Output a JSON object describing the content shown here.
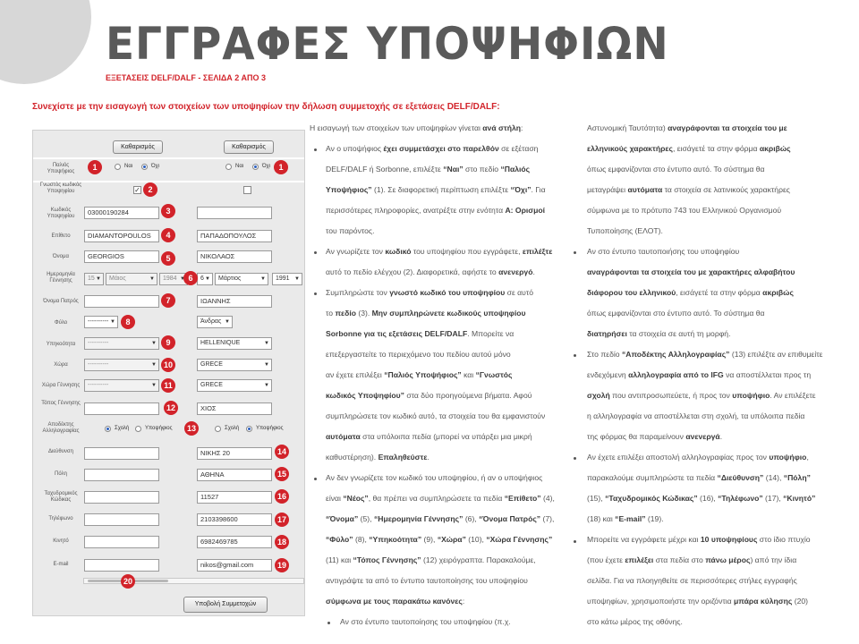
{
  "badge": "Δ2",
  "title": "ΕΓΓΡΑΦΕΣ ΥΠΟΨΗΦΙΩΝ",
  "subtitle": "ΕΞΕΤΑΣΕΙΣ DELF/DALF - ΣΕΛΙΔΑ 2 ΑΠΟ 3",
  "intro": "Συνεχίστε με την εισαγωγή των στοιχείων των υποψηφίων την δήλωση συμμετοχής σε εξετάσεις DELF/DALF:",
  "form": {
    "clear_label": "Καθαρισμός",
    "labels": {
      "old": "Παλιός Υποψήφιος",
      "known": "Γνωστός κωδικός Υποψηφίου",
      "code": "Κωδικός Υποψηφίου",
      "surname": "Επίθετο",
      "name": "Όνομα",
      "dob": "Ημερομηνία Γέννησης",
      "father": "Όνομα Πατρός",
      "gender": "Φύλο",
      "nationality": "Υπηκοότητα",
      "country": "Χώρα",
      "birth_country": "Χώρα Γέννησης",
      "birth_place": "Τόπος Γέννησης",
      "mail_recipient": "Αποδέκτης Αλληλογραφίας",
      "address": "Διεύθυνση",
      "city": "Πόλη",
      "postcode": "Ταχυδρομικός Κώδικας",
      "phone": "Τηλέφωνο",
      "mobile": "Κινητό",
      "email": "E-mail"
    },
    "yes": "Ναι",
    "no": "Όχι",
    "school": "Σχολή",
    "candidate": "Υποψήφιος",
    "left": {
      "code": "03000190284",
      "surname": "DIAMANTOPOULOS",
      "name": "GEORGIOS",
      "dob_day": "15",
      "dob_month": "Μάιος",
      "dob_year": "1984",
      "gender": "----------",
      "nationality": "----------",
      "country": "----------",
      "birth_country": "----------"
    },
    "right": {
      "surname": "ΠΑΠΑΔΟΠΟΥΛΟΣ",
      "name": "ΝΙΚΟΛΑΟΣ",
      "dob_day": "6",
      "dob_month": "Μάρτιος",
      "dob_year": "1991",
      "father": "ΙΩΑΝΝΗΣ",
      "gender": "Άνδρας",
      "nationality": "HELLENIQUE",
      "country": "GRECE",
      "birth_country": "GRECE",
      "birth_place": "ΧΙΟΣ",
      "address": "ΝΙΚΗΣ 20",
      "city": "ΑΘΗΝΑ",
      "postcode": "11527",
      "phone": "2103398600",
      "mobile": "6982469785",
      "email": "nikos@gmail.com"
    },
    "submit_label": "Υποβολή Συμμετοχών",
    "numbers": [
      "1",
      "1",
      "2",
      "3",
      "4",
      "5",
      "6",
      "7",
      "8",
      "9",
      "10",
      "11",
      "12",
      "13",
      "14",
      "15",
      "16",
      "17",
      "18",
      "19",
      "20"
    ]
  },
  "col1": {
    "r1": [
      "Η εισαγωγή των στοιχείων των υποψηφίων γίνεται ",
      "ανά στήλη",
      ":"
    ],
    "r2": [
      "Αν ο υποψήφιος ",
      "έχει συμμετάσχει στο παρελθόν",
      " σε εξέταση"
    ],
    "r3": [
      "DELF/DALF ή Sorbonne, επιλέξτε ",
      "“Ναι”",
      " στο πεδίο ",
      "“Παλιός"
    ],
    "r4": [
      "Υποψήφιος”",
      " (1). Σε διαφορετική περίπτωση επιλέξτε ",
      "“Όχι”",
      ". Για"
    ],
    "r5": [
      "περισσότερες πληροφορίες, ανατρέξτε στην ενότητα ",
      "Α: Ορισμοί"
    ],
    "r6": [
      "του παρόντος."
    ],
    "r7": [
      "Αν γνωρίζετε τον ",
      "κωδικό",
      " του υποψηφίου που εγγράφετε, ",
      "επιλέξτε"
    ],
    "r8": [
      "αυτό το πεδίο ελέγχου (2). Διαφορετικά, αφήστε το ",
      "ανενεργό",
      "."
    ],
    "r9": [
      "Συμπληρώστε τον ",
      "γνωστό κωδικό του υποψηφίου",
      " σε αυτό"
    ],
    "r10": [
      "το ",
      "πεδίο",
      " (3). ",
      "Μην συμπληρώνετε κωδικούς υποψηφίου"
    ],
    "r11": [
      "Sorbonne για τις εξετάσεις DELF/DALF",
      ". Μπορείτε να"
    ],
    "r12": [
      "επεξεργαστείτε το περιεχόμενο του πεδίου αυτού μόνο"
    ],
    "r13": [
      "αν έχετε επιλέξει ",
      "“Παλιός Υποψήφιος”",
      " και ",
      "“Γνωστός"
    ],
    "r14": [
      "κωδικός Υποψηφίου”",
      " στα δύο προηγούμενα βήματα. Αφού"
    ],
    "r15": [
      "συμπληρώσετε τον κωδικό αυτό, τα στοιχεία του θα εμφανιστούν"
    ],
    "r16": [
      "αυτόματα",
      " στα υπόλοιπα πεδία (μπορεί να υπάρξει μια μικρή"
    ],
    "r17": [
      "καθυστέρηση). ",
      "Επαληθεύστε",
      "."
    ],
    "r18": [
      "Αν δεν γνωρίζετε τον κωδικό του υποψηφίου, ή αν ο υποψήφιος"
    ],
    "r19": [
      "είναι ",
      "“Νέος”",
      ", θα πρέπει να συμπληρώσετε τα πεδία ",
      "“Επίθετο”",
      " (4),"
    ],
    "r20": [
      "“Όνομα”",
      " (5), ",
      "“Ημερομηνία Γέννησης”",
      " (6), ",
      "“Όνομα Πατρός”",
      " (7),"
    ],
    "r21": [
      "“Φύλο”",
      " (8), ",
      "“Υπηκοότητα”",
      " (9), ",
      "“Χώρα”",
      " (10), ",
      "“Χώρα Γέννησης”"
    ],
    "r22": [
      "(11) και ",
      "“Τόπος Γέννησης”",
      " (12) χειρόγραπτα. Παρακαλούμε,"
    ],
    "r23": [
      "αντιγράψτε τα από το έντυπο ταυτοποίησης του υποψηφίου"
    ],
    "r24": [
      "σύμφωνα με τους παρακάτω κανόνες",
      ":"
    ],
    "r25": [
      "Αν στο έντυπο ταυτοποίησης του υποψηφίου (π.χ."
    ]
  },
  "col2": {
    "r1": [
      "Αστυνομική Ταυτότητα) ",
      "αναγράφονται τα στοιχεία του με"
    ],
    "r2": [
      "ελληνικούς χαρακτήρες",
      ", εισάγετέ τα στην φόρμα ",
      "ακριβώς"
    ],
    "r3": [
      "όπως εμφανίζονται στο έντυπο αυτό. Το σύστημα θα"
    ],
    "r4": [
      "μεταγράψει ",
      "αυτόματα",
      " τα στοιχεία σε λατινικούς χαρακτήρες"
    ],
    "r5": [
      "σύμφωνα με το πρότυπο 743 του Ελληνικού Οργανισμού"
    ],
    "r6": [
      "Τυποποίησης (ΕΛΟΤ)."
    ],
    "r7": [
      "Αν στο έντυπο ταυτοποιήσης του υποψηφίου"
    ],
    "r8": [
      "αναγράφονται τα στοιχεία του με χαρακτήρες αλφαβήτου"
    ],
    "r9": [
      "διάφορου του ελληνικού",
      ", εισάγετέ τα στην φόρμα ",
      "ακριβώς"
    ],
    "r10": [
      "όπως εμφανίζονται στο έντυπο αυτό. Το σύστημα θα"
    ],
    "r11": [
      "διατηρήσει",
      " τα στοιχεία σε αυτή τη μορφή."
    ],
    "r12": [
      "Στο πεδίο ",
      "“Αποδέκτης Αλληλογραφίας”",
      " (13) επιλέξτε αν επιθυμείτε"
    ],
    "r13": [
      "ενδεχόμενη ",
      "αλληλογραφία από το IFG",
      " να αποστέλλεται προς τη"
    ],
    "r14": [
      "σχολή",
      " που αντιπροσωπεύετε, ή προς τον ",
      "υποψήφιο",
      ". Αν επιλέξετε"
    ],
    "r15": [
      "η αλληλογραφία να αποστέλλεται στη σχολή, τα υπόλοιπα πεδία"
    ],
    "r16": [
      "της φόρμας θα παραμείνουν ",
      "ανενεργά",
      "."
    ],
    "r17": [
      "Αν έχετε επιλέξει αποστολή αλληλογραφίας προς τον ",
      "υποψήφιο",
      ","
    ],
    "r18": [
      "παρακαλούμε συμπληρώστε τα πεδία ",
      "“Διεύθυνση”",
      " (14), ",
      "“Πόλη”"
    ],
    "r19": [
      "(15), ",
      "“Ταχυδρομικός Κώδικας”",
      " (16), ",
      "“Τηλέφωνο”",
      " (17), ",
      "“Κινητό”"
    ],
    "r20": [
      "(18) και ",
      "“E-mail”",
      " (19)."
    ],
    "r21": [
      "Μπορείτε να εγγράφετε μέχρι και ",
      "10 υποψηφίους",
      " στο ίδιο πτυχίο"
    ],
    "r22": [
      "(που έχετε ",
      "επιλέξει",
      " στα πεδία στο ",
      "πάνω μέρος",
      ") από την ίδια"
    ],
    "r23": [
      "σελίδα. Για να πλοηγηθείτε σε περισσότερες στήλες εγγραφής"
    ],
    "r24": [
      "υποψηφίων, χρησιμοποιήστε την οριζόντια ",
      "μπάρα κύλησης",
      " (20)"
    ],
    "r25": [
      "στο κάτω μέρος της οθόνης."
    ]
  }
}
